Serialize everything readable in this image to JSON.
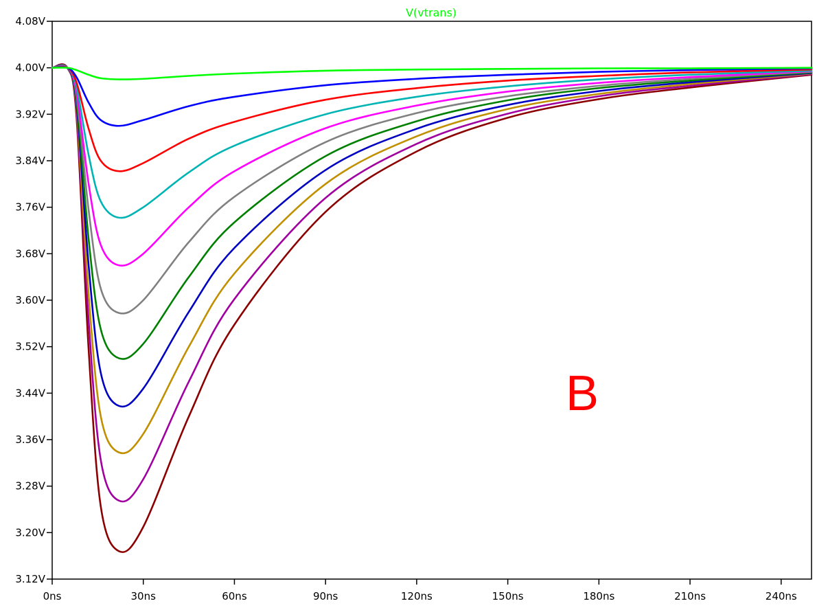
{
  "chart_data": {
    "type": "line",
    "title": "V(vtrans)",
    "title_color": "#00ff00",
    "annotation": "B",
    "annotation_color": "#ff0000",
    "x_unit": "ns",
    "y_unit": "V",
    "xlim": [
      0,
      250
    ],
    "ylim": [
      3.12,
      4.08
    ],
    "x_ticks": [
      0,
      30,
      60,
      90,
      120,
      150,
      180,
      210,
      240
    ],
    "x_tick_labels": [
      "0ns",
      "30ns",
      "60ns",
      "90ns",
      "120ns",
      "150ns",
      "180ns",
      "210ns",
      "240ns"
    ],
    "y_ticks": [
      4.08,
      4.0,
      3.92,
      3.84,
      3.76,
      3.68,
      3.6,
      3.52,
      3.44,
      3.36,
      3.28,
      3.2,
      3.12
    ],
    "y_tick_labels": [
      "4.08V",
      "4.00V",
      "3.92V",
      "3.84V",
      "3.76V",
      "3.68V",
      "3.60V",
      "3.52V",
      "3.44V",
      "3.36V",
      "3.28V",
      "3.20V",
      "3.12V"
    ],
    "grid": false,
    "baseline": 4.0,
    "series": [
      {
        "color": "#00ff00",
        "min_x": 22,
        "min_y": 3.98,
        "x": [
          0,
          5,
          8,
          12,
          16,
          22,
          30,
          45,
          60,
          90,
          120,
          150,
          180,
          210,
          250
        ],
        "y": [
          4.0,
          4.0,
          3.996,
          3.988,
          3.982,
          3.98,
          3.981,
          3.986,
          3.99,
          3.995,
          3.997,
          3.998,
          3.999,
          3.999,
          4.0
        ]
      },
      {
        "color": "#0000ff",
        "min_x": 22,
        "min_y": 3.9,
        "x": [
          0,
          5,
          8,
          12,
          16,
          22,
          30,
          45,
          60,
          90,
          120,
          150,
          180,
          210,
          250
        ],
        "y": [
          4.0,
          4.0,
          3.984,
          3.94,
          3.91,
          3.9,
          3.91,
          3.934,
          3.95,
          3.97,
          3.981,
          3.988,
          3.993,
          3.996,
          3.999
        ]
      },
      {
        "color": "#ff0000",
        "min_x": 22,
        "min_y": 3.822,
        "x": [
          0,
          5,
          8,
          12,
          16,
          22,
          30,
          45,
          60,
          90,
          120,
          150,
          180,
          210,
          250
        ],
        "y": [
          4.0,
          4.0,
          3.975,
          3.895,
          3.84,
          3.822,
          3.836,
          3.878,
          3.907,
          3.945,
          3.965,
          3.978,
          3.986,
          3.992,
          3.997
        ]
      },
      {
        "color": "#00b4b4",
        "min_x": 22,
        "min_y": 3.742,
        "x": [
          0,
          5,
          8,
          12,
          16,
          22,
          30,
          45,
          60,
          90,
          120,
          150,
          180,
          210,
          250
        ],
        "y": [
          4.0,
          4.0,
          3.968,
          3.85,
          3.77,
          3.742,
          3.76,
          3.82,
          3.866,
          3.92,
          3.95,
          3.968,
          3.98,
          3.988,
          3.995
        ]
      },
      {
        "color": "#ff00ff",
        "min_x": 22,
        "min_y": 3.66,
        "x": [
          0,
          5,
          8,
          12,
          16,
          22,
          30,
          45,
          60,
          90,
          120,
          150,
          180,
          210,
          250
        ],
        "y": [
          4.0,
          4.0,
          3.96,
          3.8,
          3.695,
          3.66,
          3.68,
          3.76,
          3.822,
          3.896,
          3.935,
          3.959,
          3.974,
          3.984,
          3.994
        ]
      },
      {
        "color": "#808080",
        "min_x": 22,
        "min_y": 3.578,
        "x": [
          0,
          5,
          8,
          12,
          16,
          22,
          30,
          45,
          60,
          90,
          120,
          150,
          180,
          210,
          250
        ],
        "y": [
          4.0,
          4.0,
          3.953,
          3.755,
          3.62,
          3.578,
          3.6,
          3.7,
          3.778,
          3.872,
          3.922,
          3.951,
          3.969,
          3.981,
          3.993
        ]
      },
      {
        "color": "#008000",
        "min_x": 22,
        "min_y": 3.5,
        "x": [
          0,
          5,
          8,
          12,
          16,
          22,
          30,
          45,
          60,
          90,
          120,
          150,
          180,
          210,
          250
        ],
        "y": [
          4.0,
          4.0,
          3.946,
          3.705,
          3.55,
          3.5,
          3.525,
          3.64,
          3.734,
          3.848,
          3.908,
          3.944,
          3.965,
          3.978,
          3.992
        ]
      },
      {
        "color": "#0000c0",
        "min_x": 22,
        "min_y": 3.418,
        "x": [
          0,
          5,
          8,
          12,
          16,
          22,
          30,
          45,
          60,
          90,
          120,
          150,
          180,
          210,
          250
        ],
        "y": [
          4.0,
          4.0,
          3.938,
          3.66,
          3.475,
          3.418,
          3.448,
          3.58,
          3.69,
          3.824,
          3.895,
          3.936,
          3.96,
          3.975,
          3.991
        ]
      },
      {
        "color": "#c09000",
        "min_x": 22,
        "min_y": 3.338,
        "x": [
          0,
          5,
          8,
          12,
          16,
          22,
          30,
          45,
          60,
          90,
          120,
          150,
          180,
          210,
          250
        ],
        "y": [
          4.0,
          4.0,
          3.931,
          3.61,
          3.4,
          3.338,
          3.37,
          3.52,
          3.646,
          3.8,
          3.882,
          3.929,
          3.955,
          3.972,
          3.99
        ]
      },
      {
        "color": "#a000a0",
        "min_x": 22,
        "min_y": 3.255,
        "x": [
          0,
          5,
          8,
          12,
          16,
          22,
          30,
          45,
          60,
          90,
          120,
          150,
          180,
          210,
          250
        ],
        "y": [
          4.0,
          4.0,
          3.924,
          3.565,
          3.325,
          3.255,
          3.292,
          3.46,
          3.602,
          3.776,
          3.869,
          3.921,
          3.951,
          3.969,
          3.989
        ]
      },
      {
        "color": "#8b0000",
        "min_x": 22,
        "min_y": 3.168,
        "x": [
          0,
          5,
          8,
          12,
          16,
          22,
          30,
          45,
          60,
          90,
          120,
          150,
          180,
          210,
          250
        ],
        "y": [
          4.0,
          4.0,
          3.916,
          3.515,
          3.245,
          3.168,
          3.21,
          3.4,
          3.558,
          3.752,
          3.856,
          3.914,
          3.946,
          3.966,
          3.988
        ]
      }
    ]
  }
}
